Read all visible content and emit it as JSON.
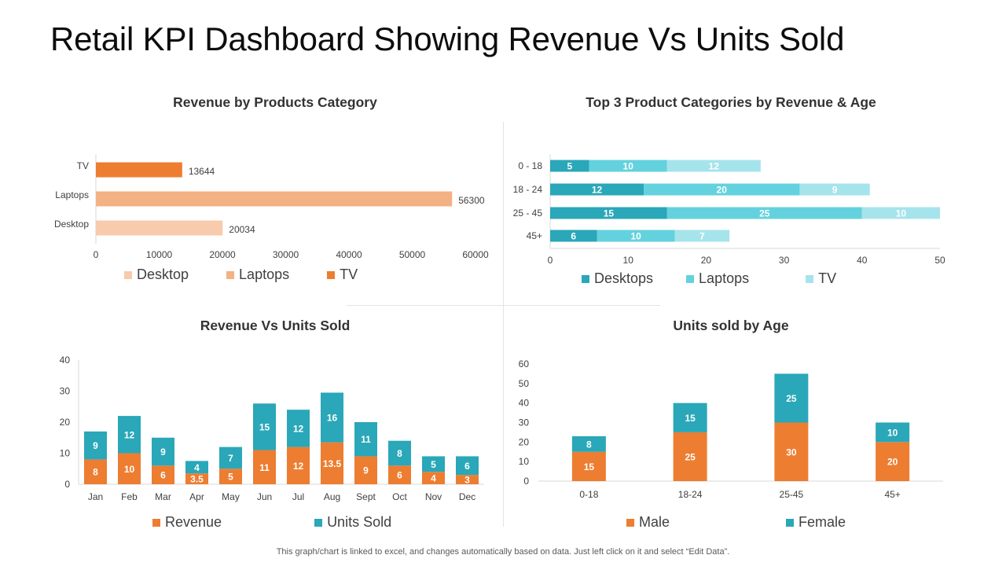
{
  "page": {
    "title": "Retail KPI Dashboard Showing Revenue Vs Units Sold",
    "footnote": "This graph/chart is linked to excel, and changes automatically based on data. Just left click on it and select “Edit Data”."
  },
  "colors": {
    "orange": "#ed7d31",
    "orange_mid": "#f4b183",
    "orange_light": "#f8cbad",
    "teal_dark": "#2aa7b8",
    "teal_mid": "#63d2de",
    "teal_light": "#a6e4ec",
    "axis": "#d9d9d9",
    "label_dark": "#404040"
  },
  "chart_data": [
    {
      "id": "revenue_by_category",
      "type": "bar",
      "orientation": "horizontal",
      "title": "Revenue by Products Category",
      "categories": [
        "TV",
        "Laptops",
        "Desktop"
      ],
      "values": [
        13644,
        56300,
        20034
      ],
      "data_labels": [
        "13644",
        "56300",
        "20034"
      ],
      "xlim": [
        0,
        60000
      ],
      "x_ticks": [
        0,
        10000,
        20000,
        30000,
        40000,
        50000,
        60000
      ],
      "x_tick_labels": [
        "0",
        "10000",
        "20000",
        "30000",
        "40000",
        "50000",
        "60000"
      ],
      "legend": [
        "Desktop",
        "Laptops",
        "TV"
      ],
      "legend_placement": "bottom"
    },
    {
      "id": "top3_by_revenue_age",
      "type": "bar",
      "orientation": "horizontal",
      "stacked": true,
      "title": "Top 3 Product Categories by Revenue & Age",
      "categories": [
        "0 - 18",
        "18 - 24",
        "25 - 45",
        "45+"
      ],
      "series": [
        {
          "name": "Desktops",
          "values": [
            5,
            12,
            15,
            6
          ],
          "labels": [
            "5",
            "12",
            "15",
            "6"
          ]
        },
        {
          "name": "Laptops",
          "values": [
            10,
            20,
            25,
            10
          ],
          "labels": [
            "10",
            "20",
            "25",
            "10"
          ]
        },
        {
          "name": "TV",
          "values": [
            12,
            9,
            10,
            7
          ],
          "labels": [
            "12",
            "9",
            "10",
            "7"
          ]
        }
      ],
      "xlim": [
        0,
        50
      ],
      "x_ticks": [
        0,
        10,
        20,
        30,
        40,
        50
      ],
      "x_tick_labels": [
        "0",
        "10",
        "20",
        "30",
        "40",
        "50"
      ],
      "legend_placement": "bottom"
    },
    {
      "id": "revenue_vs_units",
      "type": "bar",
      "stacked": true,
      "title": "Revenue Vs Units Sold",
      "categories": [
        "Jan",
        "Feb",
        "Mar",
        "Apr",
        "May",
        "Jun",
        "Jul",
        "Aug",
        "Sept",
        "Oct",
        "Nov",
        "Dec"
      ],
      "series": [
        {
          "name": "Revenue",
          "values": [
            8,
            10,
            6,
            3.5,
            5,
            11,
            12,
            13.5,
            9,
            6,
            4,
            3
          ],
          "labels": [
            "8",
            "10",
            "6",
            "3.5",
            "5",
            "11",
            "12",
            "13.5",
            "9",
            "6",
            "4",
            "3"
          ]
        },
        {
          "name": "Units Sold",
          "values": [
            9,
            12,
            9,
            4,
            7,
            15,
            12,
            16,
            11,
            8,
            5,
            6
          ],
          "labels": [
            "9",
            "12",
            "9",
            "4",
            "7",
            "15",
            "12",
            "16",
            "11",
            "8",
            "5",
            "6"
          ]
        }
      ],
      "ylim": [
        0,
        40
      ],
      "y_ticks": [
        0,
        10,
        20,
        30,
        40
      ],
      "y_tick_labels": [
        "0",
        "10",
        "20",
        "30",
        "40"
      ],
      "legend_placement": "bottom"
    },
    {
      "id": "units_by_age",
      "type": "bar",
      "stacked": true,
      "title": "Units sold by Age",
      "categories": [
        "0-18",
        "18-24",
        "25-45",
        "45+"
      ],
      "series": [
        {
          "name": "Male",
          "values": [
            15,
            25,
            30,
            20
          ],
          "labels": [
            "15",
            "25",
            "30",
            "20"
          ]
        },
        {
          "name": "Female",
          "values": [
            8,
            15,
            25,
            10
          ],
          "labels": [
            "8",
            "15",
            "25",
            "10"
          ]
        }
      ],
      "ylim": [
        0,
        60
      ],
      "y_ticks": [
        0,
        10,
        20,
        30,
        40,
        50,
        60
      ],
      "y_tick_labels": [
        "0",
        "10",
        "20",
        "30",
        "40",
        "50",
        "60"
      ],
      "legend_placement": "bottom"
    }
  ]
}
